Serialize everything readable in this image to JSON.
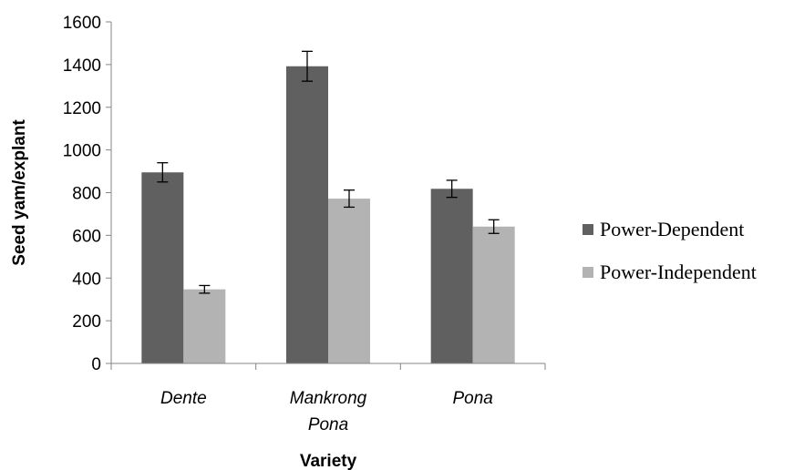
{
  "chart_data": {
    "type": "bar",
    "title": "",
    "xlabel": "Variety",
    "ylabel": "Seed yam/explant",
    "categories": [
      [
        "Dente"
      ],
      [
        "Mankrong",
        "Pona"
      ],
      [
        "Pona"
      ]
    ],
    "ylim": [
      0,
      1600
    ],
    "yticks": [
      0,
      200,
      400,
      600,
      800,
      1000,
      1200,
      1400,
      1600
    ],
    "grid": false,
    "legend_position": "right",
    "series": [
      {
        "name": "Power-Dependent",
        "color": "#606060",
        "values": [
          895,
          1392,
          818
        ],
        "errors": [
          45,
          70,
          40
        ]
      },
      {
        "name": "Power-Independent",
        "color": "#b3b3b3",
        "values": [
          347,
          772,
          641
        ],
        "errors": [
          18,
          40,
          32
        ]
      }
    ]
  }
}
